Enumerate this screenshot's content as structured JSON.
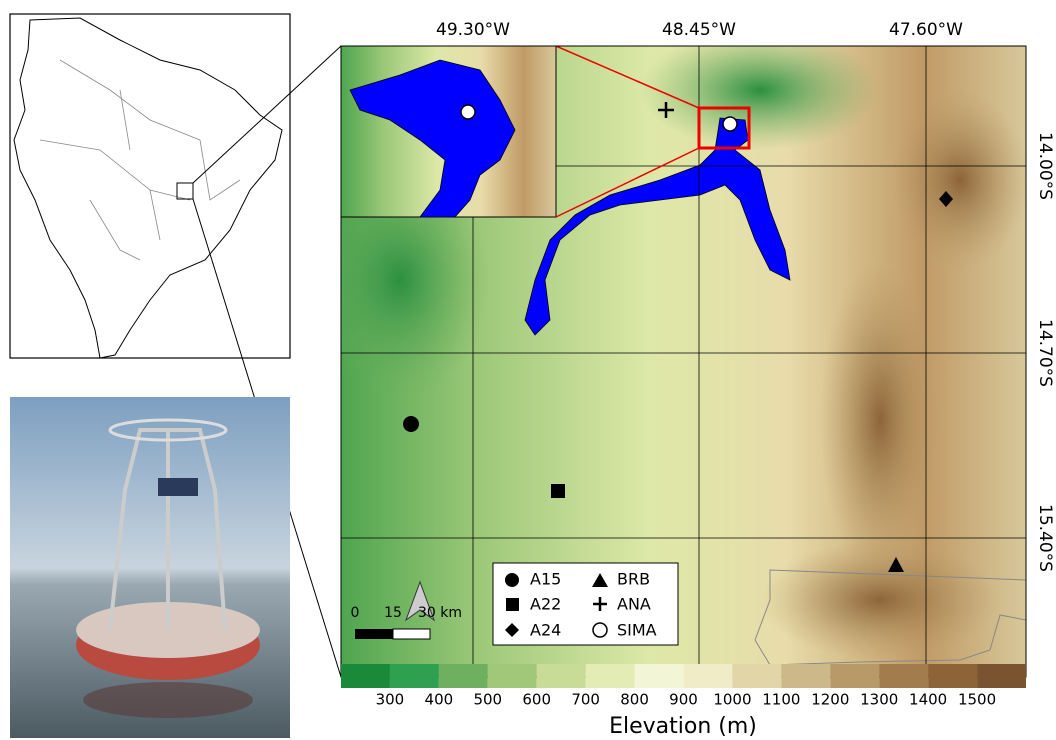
{
  "main_map": {
    "lon_labels": [
      "49.30°W",
      "48.45°W",
      "47.60°W"
    ],
    "lat_labels": [
      "14.00°S",
      "14.70°S",
      "15.40°S"
    ],
    "legend": [
      "A15",
      "A22",
      "A24",
      "BRB",
      "ANA",
      "SIMA"
    ],
    "scale_bar": [
      "0",
      "15",
      "30 km"
    ]
  },
  "colorbar": {
    "title": "Elevation (m)",
    "ticks": [
      300,
      400,
      500,
      600,
      700,
      800,
      900,
      1000,
      1100,
      1200,
      1300,
      1400,
      1500
    ],
    "colors": [
      "#1a8a3a",
      "#2fa050",
      "#6fb060",
      "#a0c878",
      "#c8dc98",
      "#e2ecb4",
      "#f2f6d6",
      "#f0ecc8",
      "#e2d6a8",
      "#ccb888",
      "#b89a68",
      "#a27c4c",
      "#8c6438",
      "#7a5430"
    ]
  }
}
